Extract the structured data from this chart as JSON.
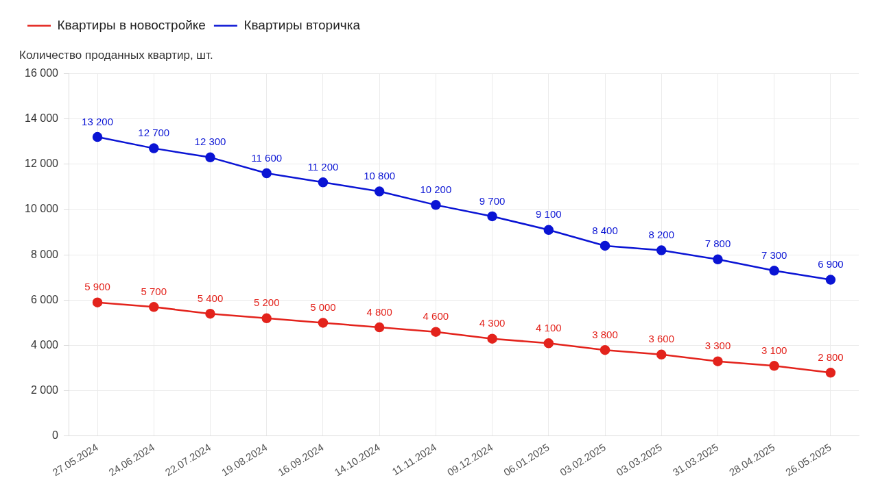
{
  "chart_data": {
    "type": "line",
    "ylabel": "Количество проданных квартир, шт.",
    "categories": [
      "27.05.2024",
      "24.06.2024",
      "22.07.2024",
      "19.08.2024",
      "16.09.2024",
      "14.10.2024",
      "11.11.2024",
      "09.12.2024",
      "06.01.2025",
      "03.02.2025",
      "03.03.2025",
      "31.03.2025",
      "28.04.2025",
      "26.05.2025"
    ],
    "series": [
      {
        "name": "Квартиры в новостройке",
        "color": "#e3231c",
        "values": [
          5900,
          5700,
          5400,
          5200,
          5000,
          4800,
          4600,
          4300,
          4100,
          3800,
          3600,
          3300,
          3100,
          2800
        ],
        "value_labels": [
          "5 900",
          "5 700",
          "5 400",
          "5 200",
          "5 000",
          "4 800",
          "4 600",
          "4 300",
          "4 100",
          "3 800",
          "3 600",
          "3 300",
          "3 100",
          "2 800"
        ]
      },
      {
        "name": "Квартиры вторичка",
        "color": "#0a14d4",
        "values": [
          13200,
          12700,
          12300,
          11600,
          11200,
          10800,
          10200,
          9700,
          9100,
          8400,
          8200,
          7800,
          7300,
          6900
        ],
        "value_labels": [
          "13 200",
          "12 700",
          "12 300",
          "11 600",
          "11 200",
          "10 800",
          "10 200",
          "9 700",
          "9 100",
          "8 400",
          "8 200",
          "7 800",
          "7 300",
          "6 900"
        ]
      }
    ],
    "ylim": [
      0,
      16000
    ],
    "yticks": [
      0,
      {
        "value": 2000,
        "label": "2 000"
      },
      {
        "value": 4000,
        "label": "4 000"
      },
      {
        "value": 6000,
        "label": "6 000"
      },
      {
        "value": 8000,
        "label": "8 000"
      },
      {
        "value": 10000,
        "label": "10 000"
      },
      {
        "value": 12000,
        "label": "12 000"
      },
      {
        "value": 14000,
        "label": "14 000"
      },
      {
        "value": 16000,
        "label": "16 000"
      }
    ],
    "grid": true,
    "legend": "top left",
    "marker": "circle",
    "line_style": "solid"
  }
}
